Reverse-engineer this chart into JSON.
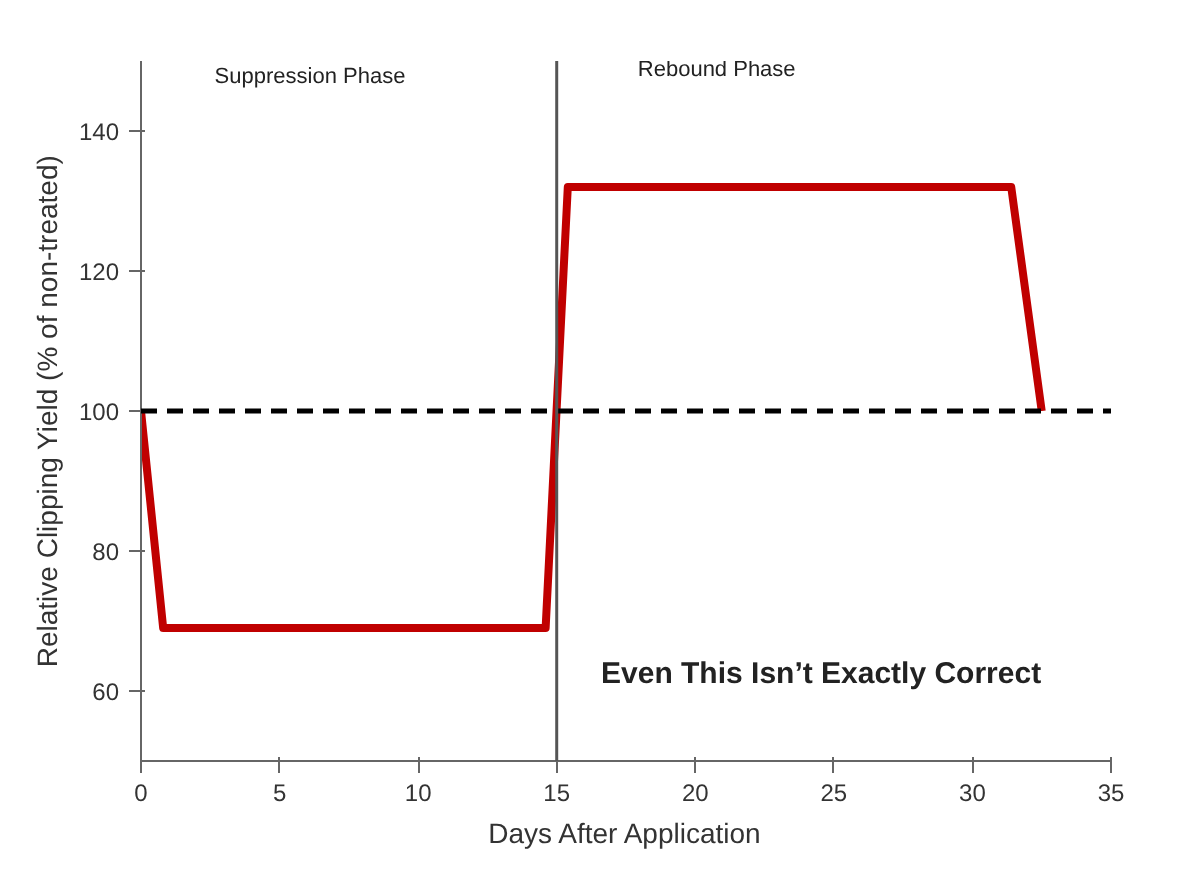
{
  "chart_data": {
    "type": "line",
    "xlabel": "Days After Application",
    "ylabel": "Relative Clipping Yield (% of non-treated)",
    "x": [
      0,
      0.8,
      14.6,
      15.4,
      31.4,
      32.5
    ],
    "series": [
      {
        "color": "#c00000",
        "values": [
          100,
          69,
          69,
          132,
          132,
          100
        ]
      }
    ],
    "xlim": [
      0,
      35
    ],
    "xticks": [
      0,
      5,
      10,
      15,
      20,
      25,
      30,
      35
    ],
    "ylim": [
      50,
      150
    ],
    "yticks": [
      60,
      80,
      100,
      120,
      140
    ],
    "ref_lines": [
      {
        "axis": "y",
        "value": 100,
        "label": null,
        "color": "#000000",
        "line_style": "dashed"
      },
      {
        "axis": "x",
        "value": 15,
        "label": null,
        "color": "#555555",
        "line_style": "solid"
      }
    ],
    "annotations": [
      "Suppression Phase",
      "Rebound Phase",
      "Even This Isn’t Exactly Correct"
    ],
    "grid": false,
    "marker": "none",
    "line_style": "solid"
  }
}
